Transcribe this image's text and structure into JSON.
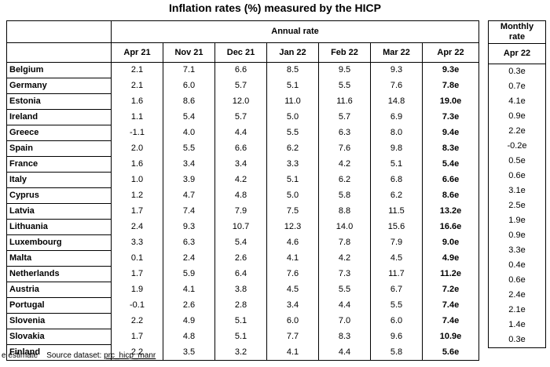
{
  "title": "Inflation rates (%) measured by the HICP",
  "annual_header": "Annual rate",
  "monthly_header_line1": "Monthly",
  "monthly_header_line2": "rate",
  "monthly_column": "Apr 22",
  "columns": [
    "Apr 21",
    "Nov 21",
    "Dec 21",
    "Jan 22",
    "Feb 22",
    "Mar 22",
    "Apr 22"
  ],
  "rows": [
    {
      "country": "Belgium",
      "values": [
        "2.1",
        "7.1",
        "6.6",
        "8.5",
        "9.5",
        "9.3",
        "9.3e"
      ],
      "monthly": "0.3e"
    },
    {
      "country": "Germany",
      "values": [
        "2.1",
        "6.0",
        "5.7",
        "5.1",
        "5.5",
        "7.6",
        "7.8e"
      ],
      "monthly": "0.7e"
    },
    {
      "country": "Estonia",
      "values": [
        "1.6",
        "8.6",
        "12.0",
        "11.0",
        "11.6",
        "14.8",
        "19.0e"
      ],
      "monthly": "4.1e"
    },
    {
      "country": "Ireland",
      "values": [
        "1.1",
        "5.4",
        "5.7",
        "5.0",
        "5.7",
        "6.9",
        "7.3e"
      ],
      "monthly": "0.9e"
    },
    {
      "country": "Greece",
      "values": [
        "-1.1",
        "4.0",
        "4.4",
        "5.5",
        "6.3",
        "8.0",
        "9.4e"
      ],
      "monthly": "2.2e"
    },
    {
      "country": "Spain",
      "values": [
        "2.0",
        "5.5",
        "6.6",
        "6.2",
        "7.6",
        "9.8",
        "8.3e"
      ],
      "monthly": "-0.2e"
    },
    {
      "country": "France",
      "values": [
        "1.6",
        "3.4",
        "3.4",
        "3.3",
        "4.2",
        "5.1",
        "5.4e"
      ],
      "monthly": "0.5e"
    },
    {
      "country": "Italy",
      "values": [
        "1.0",
        "3.9",
        "4.2",
        "5.1",
        "6.2",
        "6.8",
        "6.6e"
      ],
      "monthly": "0.6e"
    },
    {
      "country": "Cyprus",
      "values": [
        "1.2",
        "4.7",
        "4.8",
        "5.0",
        "5.8",
        "6.2",
        "8.6e"
      ],
      "monthly": "3.1e"
    },
    {
      "country": "Latvia",
      "values": [
        "1.7",
        "7.4",
        "7.9",
        "7.5",
        "8.8",
        "11.5",
        "13.2e"
      ],
      "monthly": "2.5e"
    },
    {
      "country": "Lithuania",
      "values": [
        "2.4",
        "9.3",
        "10.7",
        "12.3",
        "14.0",
        "15.6",
        "16.6e"
      ],
      "monthly": "1.9e"
    },
    {
      "country": "Luxembourg",
      "values": [
        "3.3",
        "6.3",
        "5.4",
        "4.6",
        "7.8",
        "7.9",
        "9.0e"
      ],
      "monthly": "0.9e"
    },
    {
      "country": "Malta",
      "values": [
        "0.1",
        "2.4",
        "2.6",
        "4.1",
        "4.2",
        "4.5",
        "4.9e"
      ],
      "monthly": "3.3e"
    },
    {
      "country": "Netherlands",
      "values": [
        "1.7",
        "5.9",
        "6.4",
        "7.6",
        "7.3",
        "11.7",
        "11.2e"
      ],
      "monthly": "0.4e"
    },
    {
      "country": "Austria",
      "values": [
        "1.9",
        "4.1",
        "3.8",
        "4.5",
        "5.5",
        "6.7",
        "7.2e"
      ],
      "monthly": "0.6e"
    },
    {
      "country": "Portugal",
      "values": [
        "-0.1",
        "2.6",
        "2.8",
        "3.4",
        "4.4",
        "5.5",
        "7.4e"
      ],
      "monthly": "2.4e"
    },
    {
      "country": "Slovenia",
      "values": [
        "2.2",
        "4.9",
        "5.1",
        "6.0",
        "7.0",
        "6.0",
        "7.4e"
      ],
      "monthly": "2.1e"
    },
    {
      "country": "Slovakia",
      "values": [
        "1.7",
        "4.8",
        "5.1",
        "7.7",
        "8.3",
        "9.6",
        "10.9e"
      ],
      "monthly": "1.4e"
    },
    {
      "country": "Finland",
      "values": [
        "2.2",
        "3.5",
        "3.2",
        "4.1",
        "4.4",
        "5.8",
        "5.6e"
      ],
      "monthly": "0.3e"
    }
  ],
  "footnote": {
    "estimate_label": "e estimate",
    "source_label": "Source dataset:",
    "source_link": "prc_hicp_manr"
  }
}
